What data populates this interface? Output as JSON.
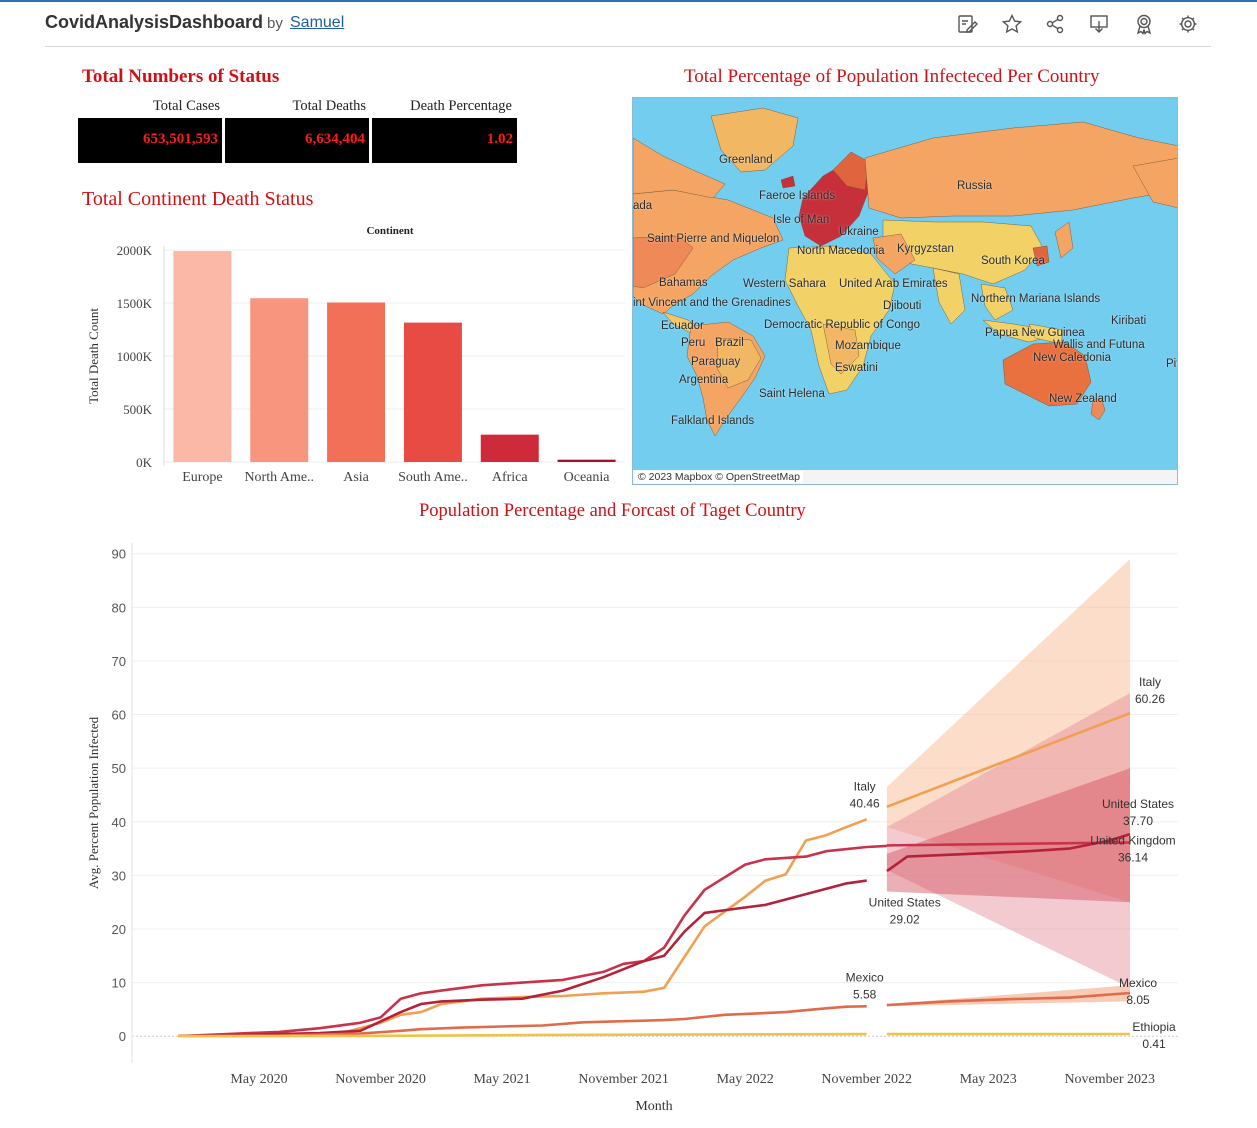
{
  "header": {
    "title": "CovidAnalysisDashboard",
    "by": "by",
    "author": "Samuel"
  },
  "toolbar": [
    "edit-icon",
    "star-icon",
    "share-icon",
    "download-icon",
    "badge-icon",
    "settings-icon"
  ],
  "status": {
    "title": "Total Numbers of Status",
    "columns": [
      "Total Cases",
      "Total Deaths",
      "Death Percentage"
    ],
    "values": [
      "653,501,593",
      "6,634,404",
      "1.02"
    ]
  },
  "map": {
    "title": "Total  Percentage of Population Infecteced Per Country",
    "labels": [
      "Greenland",
      "Russia",
      "Faeroe Islands",
      "Isle of Man",
      "ada",
      "Saint Pierre and Miquelon",
      "Ukraine",
      "North Macedonia",
      "Kyrgyzstan",
      "South Korea",
      "Bahamas",
      "Western Sahara",
      "United Arab Emirates",
      "Northern Mariana Islands",
      "int Vincent and the Grenadines",
      "Djibouti",
      "Kiribati",
      "Ecuador",
      "Democratic Republic of Congo",
      "Papua New Guinea",
      "Peru",
      "Brazil",
      "Mozambique",
      "Wallis and Futuna",
      "Paraguay",
      "New Caledonia",
      "Pitc",
      "Eswatini",
      "Argentina",
      "Saint Helena",
      "New Zealand",
      "Falkland Islands"
    ],
    "attribution": "© 2023 Mapbox  © OpenStreetMap"
  },
  "colors": {
    "title_red": "#d40f14",
    "kpi_bg": "#000000",
    "kpi_text": "#ff1a1a",
    "ocean": "#73cdee",
    "land_low": "#f2d266",
    "land_mid": "#f4a563",
    "land_high": "#c7303a"
  },
  "bar_section": {
    "title": "Total Continent Death Status"
  },
  "chart_data": [
    {
      "type": "bar",
      "title": "Continent",
      "categories": [
        "Europe",
        "North Ame..",
        "Asia",
        "South Ame..",
        "Africa",
        "Oceania"
      ],
      "values": [
        1990000,
        1545000,
        1505000,
        1315000,
        258000,
        22000
      ],
      "ylabel": "Total Death Count",
      "yticks": [
        "0K",
        "500K",
        "1000K",
        "1500K",
        "2000K"
      ],
      "ylim": [
        0,
        2000000
      ],
      "colors": [
        "#fbb8a6",
        "#f8957e",
        "#f26f58",
        "#e74b44",
        "#cf2a3a",
        "#a3142c"
      ],
      "grid": true
    },
    {
      "type": "line",
      "title": "Population Percentage and Forcast of Taget Country",
      "xlabel": "Month",
      "ylabel": "Avg. Percent Population Infected",
      "ylim": [
        -5,
        92
      ],
      "yticks": [
        0,
        10,
        20,
        30,
        40,
        50,
        60,
        70,
        80,
        90
      ],
      "xticks": [
        "May 2020",
        "November 2020",
        "May 2021",
        "November 2021",
        "May 2022",
        "November 2022",
        "May 2023",
        "November 2023"
      ],
      "x_range": [
        "2020-01",
        "2023-12"
      ],
      "grid": true,
      "series": [
        {
          "name": "Italy",
          "color": "#f0a050",
          "actual": [
            [
              "2020-01",
              0
            ],
            [
              "2020-05",
              0.3
            ],
            [
              "2020-09",
              0.5
            ],
            [
              "2020-11",
              2.5
            ],
            [
              "2020-12",
              4
            ],
            [
              "2021-01",
              4.5
            ],
            [
              "2021-02",
              6
            ],
            [
              "2021-03",
              6.5
            ],
            [
              "2021-04",
              7
            ],
            [
              "2021-06",
              7.3
            ],
            [
              "2021-08",
              7.5
            ],
            [
              "2021-10",
              8
            ],
            [
              "2021-12",
              8.3
            ],
            [
              "2022-01",
              9
            ],
            [
              "2022-03",
              20.5
            ],
            [
              "2022-05",
              26
            ],
            [
              "2022-06",
              29
            ],
            [
              "2022-07",
              30.2
            ],
            [
              "2022-08",
              36.5
            ],
            [
              "2022-09",
              37.5
            ],
            [
              "2022-10",
              39
            ],
            [
              "2022-11",
              40.46
            ]
          ],
          "forecast": [
            [
              "2022-12",
              42.8
            ],
            [
              "2023-12",
              60.26
            ]
          ],
          "band_lower": [
            [
              "2022-12",
              39
            ],
            [
              "2023-12",
              25
            ]
          ],
          "band_upper": [
            [
              "2022-12",
              46.5
            ],
            [
              "2023-12",
              89
            ]
          ],
          "end_label": "Italy",
          "end_value": "60.26",
          "last_actual_label": "Italy",
          "last_actual_value": "40.46"
        },
        {
          "name": "United Kingdom",
          "color": "#c8324a",
          "actual": [
            [
              "2020-01",
              0
            ],
            [
              "2020-04",
              0.5
            ],
            [
              "2020-06",
              0.8
            ],
            [
              "2020-08",
              1.5
            ],
            [
              "2020-10",
              2.5
            ],
            [
              "2020-11",
              3.5
            ],
            [
              "2020-12",
              7
            ],
            [
              "2021-01",
              8
            ],
            [
              "2021-02",
              8.5
            ],
            [
              "2021-04",
              9.5
            ],
            [
              "2021-06",
              10
            ],
            [
              "2021-08",
              10.5
            ],
            [
              "2021-10",
              12
            ],
            [
              "2021-11",
              13.5
            ],
            [
              "2021-12",
              14
            ],
            [
              "2022-01",
              16.5
            ],
            [
              "2022-02",
              22.5
            ],
            [
              "2022-03",
              27.3
            ],
            [
              "2022-05",
              32
            ],
            [
              "2022-06",
              33
            ],
            [
              "2022-08",
              33.5
            ],
            [
              "2022-09",
              34.5
            ],
            [
              "2022-11",
              35.3
            ],
            [
              "2022-12",
              35.5
            ]
          ],
          "forecast": [
            [
              "2022-12",
              35.6
            ],
            [
              "2023-12",
              36.14
            ]
          ],
          "band_lower": [
            [
              "2022-12",
              31
            ],
            [
              "2023-12",
              9
            ]
          ],
          "band_upper": [
            [
              "2022-12",
              39
            ],
            [
              "2023-12",
              64
            ]
          ],
          "end_label": "United Kingdom",
          "end_value": "36.14"
        },
        {
          "name": "United States",
          "color": "#b3223a",
          "actual": [
            [
              "2020-01",
              0
            ],
            [
              "2020-04",
              0.2
            ],
            [
              "2020-08",
              0.6
            ],
            [
              "2020-10",
              1
            ],
            [
              "2020-12",
              4.5
            ],
            [
              "2021-01",
              6
            ],
            [
              "2021-02",
              6.5
            ],
            [
              "2021-04",
              6.8
            ],
            [
              "2021-06",
              7
            ],
            [
              "2021-08",
              8.5
            ],
            [
              "2021-10",
              11
            ],
            [
              "2021-12",
              14
            ],
            [
              "2022-01",
              15
            ],
            [
              "2022-02",
              19.5
            ],
            [
              "2022-03",
              23
            ],
            [
              "2022-05",
              24
            ],
            [
              "2022-06",
              24.5
            ],
            [
              "2022-07",
              25.5
            ],
            [
              "2022-09",
              27.5
            ],
            [
              "2022-10",
              28.5
            ],
            [
              "2022-11",
              29.02
            ]
          ],
          "forecast": [
            [
              "2022-12",
              30.8
            ],
            [
              "2023-01",
              33.5
            ],
            [
              "2023-04",
              34
            ],
            [
              "2023-07",
              34.5
            ],
            [
              "2023-09",
              35
            ],
            [
              "2023-11",
              36.5
            ],
            [
              "2023-12",
              37.7
            ]
          ],
          "band_lower": [
            [
              "2022-12",
              27
            ],
            [
              "2023-12",
              25
            ]
          ],
          "band_upper": [
            [
              "2022-12",
              34
            ],
            [
              "2023-12",
              50
            ]
          ],
          "end_label": "United States",
          "end_value": "37.70",
          "last_actual_label": "United States",
          "last_actual_value": "29.02"
        },
        {
          "name": "Mexico",
          "color": "#e06b4a",
          "actual": [
            [
              "2020-01",
              0
            ],
            [
              "2020-06",
              0.1
            ],
            [
              "2020-10",
              0.5
            ],
            [
              "2020-12",
              1
            ],
            [
              "2021-01",
              1.3
            ],
            [
              "2021-03",
              1.6
            ],
            [
              "2021-05",
              1.8
            ],
            [
              "2021-07",
              2
            ],
            [
              "2021-09",
              2.6
            ],
            [
              "2021-11",
              2.8
            ],
            [
              "2022-01",
              3
            ],
            [
              "2022-02",
              3.2
            ],
            [
              "2022-04",
              4
            ],
            [
              "2022-06",
              4.3
            ],
            [
              "2022-07",
              4.5
            ],
            [
              "2022-09",
              5.2
            ],
            [
              "2022-10",
              5.5
            ],
            [
              "2022-11",
              5.58
            ]
          ],
          "forecast": [
            [
              "2022-12",
              5.8
            ],
            [
              "2023-03",
              6.5
            ],
            [
              "2023-06",
              6.9
            ],
            [
              "2023-09",
              7.2
            ],
            [
              "2023-12",
              8.05
            ]
          ],
          "band_lower": [
            [
              "2022-12",
              5.6
            ],
            [
              "2023-12",
              6.5
            ]
          ],
          "band_upper": [
            [
              "2022-12",
              6
            ],
            [
              "2023-12",
              9.5
            ]
          ],
          "end_label": "Mexico",
          "end_value": "8.05",
          "last_actual_label": "Mexico",
          "last_actual_value": "5.58"
        },
        {
          "name": "Ethiopia",
          "color": "#f2c14a",
          "actual": [
            [
              "2020-01",
              0
            ],
            [
              "2020-10",
              0.05
            ],
            [
              "2021-06",
              0.2
            ],
            [
              "2022-06",
              0.35
            ],
            [
              "2022-11",
              0.4
            ]
          ],
          "forecast": [
            [
              "2022-12",
              0.4
            ],
            [
              "2023-12",
              0.41
            ]
          ],
          "end_label": "Ethiopia",
          "end_value": "0.41"
        }
      ]
    }
  ]
}
